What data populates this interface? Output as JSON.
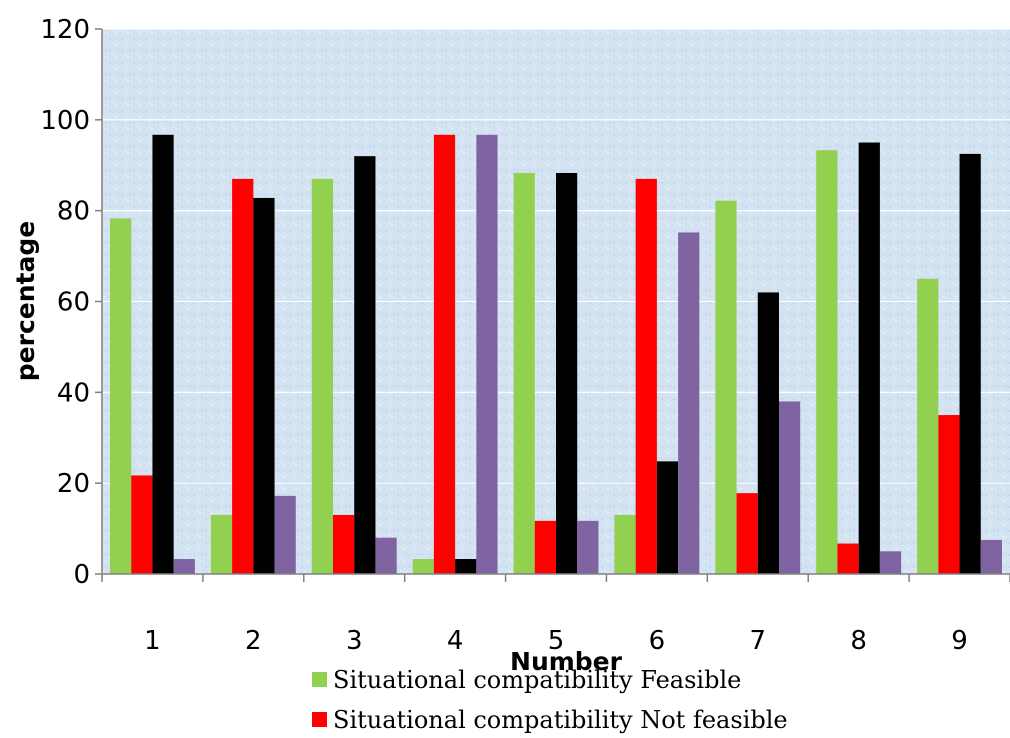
{
  "chart_data": {
    "type": "bar",
    "title": "",
    "xlabel": "Number",
    "ylabel": "percentage",
    "ylim": [
      0,
      120
    ],
    "yticks": [
      0,
      20,
      40,
      60,
      80,
      100,
      120
    ],
    "grid": true,
    "legend_position": "bottom",
    "categories": [
      "1",
      "2",
      "3",
      "4",
      "5",
      "6",
      "7",
      "8",
      "9"
    ],
    "series": [
      {
        "name": "Situational compatibility Feasible",
        "color": "#92d050",
        "values": [
          78.3,
          13,
          87,
          3.3,
          88.3,
          13,
          82.2,
          93.3,
          65
        ]
      },
      {
        "name": "Situational compatibility Not feasible",
        "color": "#ff0000",
        "values": [
          21.7,
          87,
          13,
          96.7,
          11.7,
          87,
          17.8,
          6.7,
          35
        ]
      },
      {
        "name": "",
        "color": "#000000",
        "values": [
          96.7,
          82.8,
          92,
          3.3,
          88.3,
          24.8,
          62,
          95,
          92.5
        ]
      },
      {
        "name": "",
        "color": "#8064a2",
        "values": [
          3.3,
          17.2,
          8,
          96.7,
          11.7,
          75.2,
          38,
          5,
          7.5
        ]
      }
    ]
  }
}
